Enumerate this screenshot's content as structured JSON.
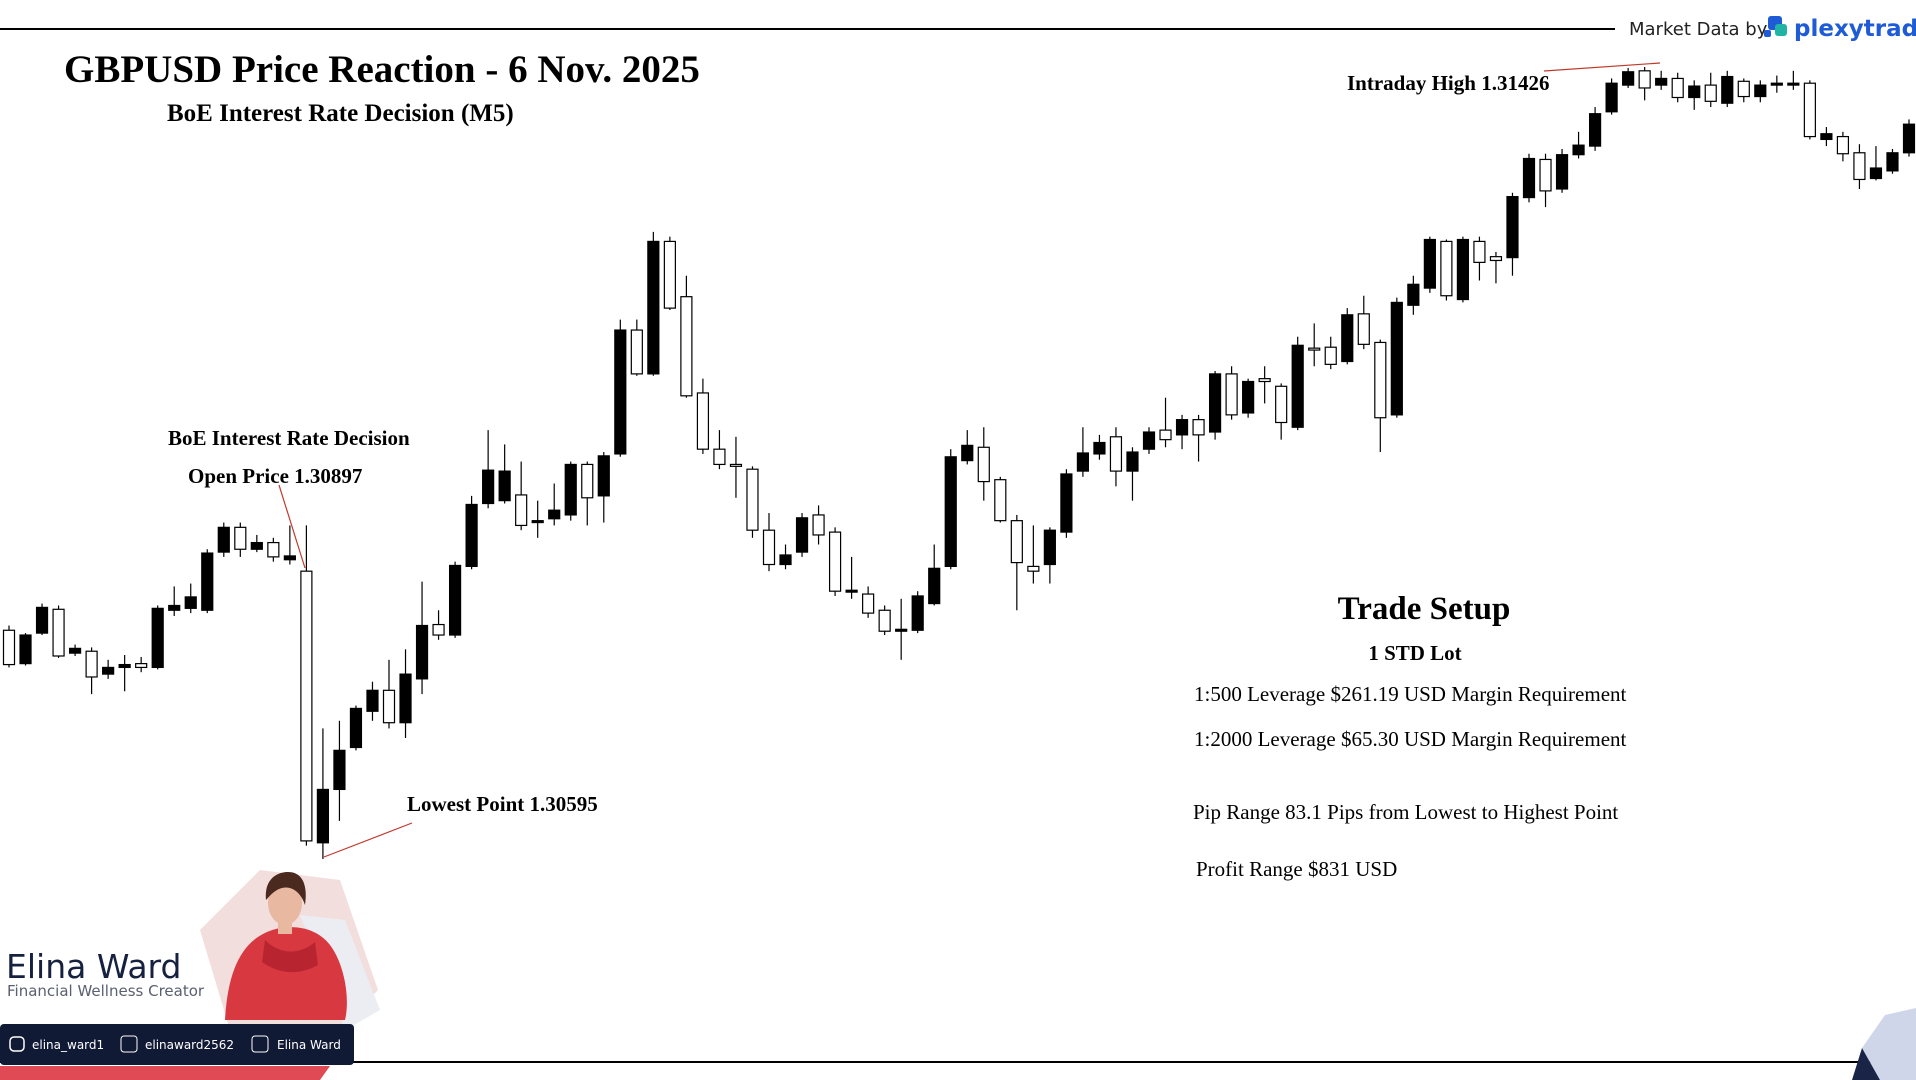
{
  "chart_data": {
    "type": "candlestick",
    "title": "GBPUSD Price Reaction - 6 Nov. 2025",
    "subtitle": "BoE Interest Rate Decision (M5)",
    "up_color": "#000000",
    "down_color": "#ffffff",
    "edge_color": "#000000",
    "annotations": [
      "BoE Interest Rate Decision",
      "Open Price 1.30897",
      "Lowest Point 1.30595",
      "Intraday High 1.31426"
    ],
    "open": [
      1.30835,
      1.308,
      1.30832,
      1.30857,
      1.30811,
      1.30813,
      1.30789,
      1.30796,
      1.308,
      1.30796,
      1.30856,
      1.30858,
      1.30856,
      1.30917,
      1.30943,
      1.3092,
      1.30927,
      1.30909,
      1.30897,
      1.30612,
      1.30668,
      1.30712,
      1.3075,
      1.30772,
      1.30738,
      1.30784,
      1.30841,
      1.3083,
      1.30902,
      1.30968,
      1.30971,
      1.30977,
      1.30948,
      1.30952,
      1.30956,
      1.31009,
      1.30976,
      1.3102,
      1.3115,
      1.31104,
      1.31243,
      1.31185,
      1.31084,
      1.31025,
      1.31009,
      1.31004,
      1.3094,
      1.30904,
      1.30917,
      1.30956,
      1.30938,
      1.30875,
      1.30873,
      1.30856,
      1.30834,
      1.30835,
      1.30863,
      1.30902,
      1.31013,
      1.31027,
      1.30993,
      1.3095,
      1.30902,
      1.30904,
      1.30938,
      1.31002,
      1.3102,
      1.31038,
      1.31002,
      1.31025,
      1.31045,
      1.3104,
      1.31056,
      1.31043,
      1.31104,
      1.31063,
      1.31099,
      1.31091,
      1.31048,
      1.31131,
      1.31132,
      1.31117,
      1.31167,
      1.31137,
      1.31061,
      1.31176,
      1.31194,
      1.31243,
      1.31182,
      1.31243,
      1.31227,
      1.31226,
      1.31289,
      1.31329,
      1.31298,
      1.31334,
      1.31343,
      1.31379,
      1.31407,
      1.31422,
      1.31407,
      1.31414,
      1.31394,
      1.31407,
      1.31388,
      1.31411,
      1.31395,
      1.31407,
      1.31407,
      1.31409,
      1.3135,
      1.31353,
      1.31336,
      1.31309,
      1.31317,
      1.31336
    ],
    "high": [
      1.3084,
      1.30832,
      1.30863,
      1.30861,
      1.3082,
      1.30817,
      1.30804,
      1.30809,
      1.30807,
      1.30861,
      1.30881,
      1.30884,
      1.3092,
      1.30948,
      1.30948,
      1.30935,
      1.30932,
      1.30945,
      1.30945,
      1.30732,
      1.3074,
      1.30756,
      1.30781,
      1.30804,
      1.30815,
      1.30886,
      1.30856,
      1.30907,
      1.30976,
      1.31045,
      1.3103,
      1.31012,
      1.30971,
      1.30989,
      1.31012,
      1.31012,
      1.31022,
      1.31161,
      1.31161,
      1.31253,
      1.31248,
      1.31207,
      1.31099,
      1.31045,
      1.31038,
      1.31007,
      1.30958,
      1.30925,
      1.30958,
      1.30966,
      1.30943,
      1.30912,
      1.30881,
      1.30861,
      1.30868,
      1.30876,
      1.30925,
      1.31025,
      1.31045,
      1.31048,
      1.30996,
      1.30956,
      1.30945,
      1.30943,
      1.31004,
      1.31048,
      1.3104,
      1.31048,
      1.31027,
      1.31048,
      1.31079,
      1.31061,
      1.31061,
      1.31107,
      1.31112,
      1.31099,
      1.31112,
      1.31094,
      1.31143,
      1.31157,
      1.31143,
      1.31173,
      1.31186,
      1.3114,
      1.31184,
      1.31207,
      1.31248,
      1.31245,
      1.31248,
      1.31248,
      1.31232,
      1.31294,
      1.31335,
      1.31335,
      1.3134,
      1.31358,
      1.31384,
      1.31414,
      1.31425,
      1.31426,
      1.31422,
      1.3142,
      1.31412,
      1.3142,
      1.31422,
      1.31414,
      1.31412,
      1.31417,
      1.31422,
      1.31412,
      1.31363,
      1.31358,
      1.31345,
      1.31343,
      1.3134,
      1.31371
    ],
    "low": [
      1.30796,
      1.30798,
      1.3083,
      1.30806,
      1.30808,
      1.30768,
      1.30784,
      1.30771,
      1.30791,
      1.30794,
      1.3085,
      1.30853,
      1.30853,
      1.30912,
      1.30912,
      1.30917,
      1.30907,
      1.30904,
      1.30609,
      1.30595,
      1.30635,
      1.30709,
      1.3074,
      1.30732,
      1.30722,
      1.30768,
      1.30825,
      1.30827,
      1.30899,
      1.30963,
      1.30968,
      1.3094,
      1.30932,
      1.30945,
      1.3095,
      1.30945,
      1.30948,
      1.31017,
      1.31102,
      1.31102,
      1.31171,
      1.31079,
      1.3102,
      1.31004,
      1.30974,
      1.30932,
      1.30897,
      1.30899,
      1.30912,
      1.30925,
      1.30871,
      1.30868,
      1.30848,
      1.3083,
      1.30804,
      1.30832,
      1.30861,
      1.30899,
      1.31009,
      1.30971,
      1.30948,
      1.30856,
      1.30884,
      1.30884,
      1.30932,
      1.30996,
      1.31014,
      1.30986,
      1.30971,
      1.3102,
      1.31027,
      1.31025,
      1.31012,
      1.31035,
      1.31056,
      1.31058,
      1.31073,
      1.31035,
      1.31045,
      1.31112,
      1.31109,
      1.31114,
      1.3113,
      1.31022,
      1.31058,
      1.31166,
      1.31189,
      1.31181,
      1.31179,
      1.31202,
      1.31199,
      1.31207,
      1.31284,
      1.31279,
      1.31294,
      1.3133,
      1.31338,
      1.31376,
      1.31404,
      1.31391,
      1.31402,
      1.31389,
      1.31381,
      1.31384,
      1.31384,
      1.31389,
      1.31389,
      1.31399,
      1.31402,
      1.3135,
      1.31343,
      1.31327,
      1.31298,
      1.31307,
      1.31314,
      1.31332
    ],
    "close": [
      1.30799,
      1.3083,
      1.30859,
      1.30808,
      1.30816,
      1.30786,
      1.30796,
      1.30799,
      1.30796,
      1.30858,
      1.30861,
      1.3087,
      1.30916,
      1.30943,
      1.3092,
      1.30927,
      1.30912,
      1.30913,
      1.30614,
      1.30668,
      1.30709,
      1.30753,
      1.30772,
      1.30738,
      1.30789,
      1.3084,
      1.3083,
      1.30903,
      1.30967,
      1.31003,
      1.31002,
      1.30945,
      1.3095,
      1.30961,
      1.31009,
      1.30974,
      1.31018,
      1.3115,
      1.31104,
      1.31243,
      1.31173,
      1.31081,
      1.31025,
      1.31009,
      1.31007,
      1.3094,
      1.30904,
      1.30914,
      1.30953,
      1.30935,
      1.30876,
      1.30877,
      1.30853,
      1.30834,
      1.30836,
      1.30871,
      1.309,
      1.31017,
      1.31029,
      1.30991,
      1.3095,
      1.30906,
      1.30897,
      1.3094,
      1.30999,
      1.31021,
      1.31032,
      1.31002,
      1.31022,
      1.31043,
      1.31035,
      1.31056,
      1.3104,
      1.31104,
      1.31061,
      1.31096,
      1.31096,
      1.31053,
      1.31134,
      1.31129,
      1.31114,
      1.31166,
      1.31135,
      1.31058,
      1.31179,
      1.31198,
      1.31245,
      1.31186,
      1.31245,
      1.31221,
      1.31223,
      1.3129,
      1.3133,
      1.31296,
      1.31334,
      1.31344,
      1.31377,
      1.31409,
      1.31421,
      1.31404,
      1.31414,
      1.31394,
      1.31406,
      1.3139,
      1.31416,
      1.31395,
      1.31407,
      1.31409,
      1.31409,
      1.31353,
      1.31356,
      1.31335,
      1.31308,
      1.3132,
      1.31336,
      1.31366
    ]
  },
  "trade_setup": {
    "title": "Trade Setup",
    "subtitle": "1 STD Lot",
    "lines": [
      "1:500 Leverage $261.19 USD Margin Requirement",
      "1:2000 Leverage $65.30 USD Margin Requirement",
      "Pip Range 83.1 Pips from Lowest to Highest Point",
      "Profit Range $831 USD"
    ]
  },
  "header": {
    "market_data": "Market Data by",
    "brand": "plexytrade"
  },
  "creator": {
    "name": "Elina Ward",
    "role": "Financial Wellness Creator",
    "instagram": "elina_ward1",
    "x": "elinaward2562",
    "facebook": "Elina Ward"
  }
}
